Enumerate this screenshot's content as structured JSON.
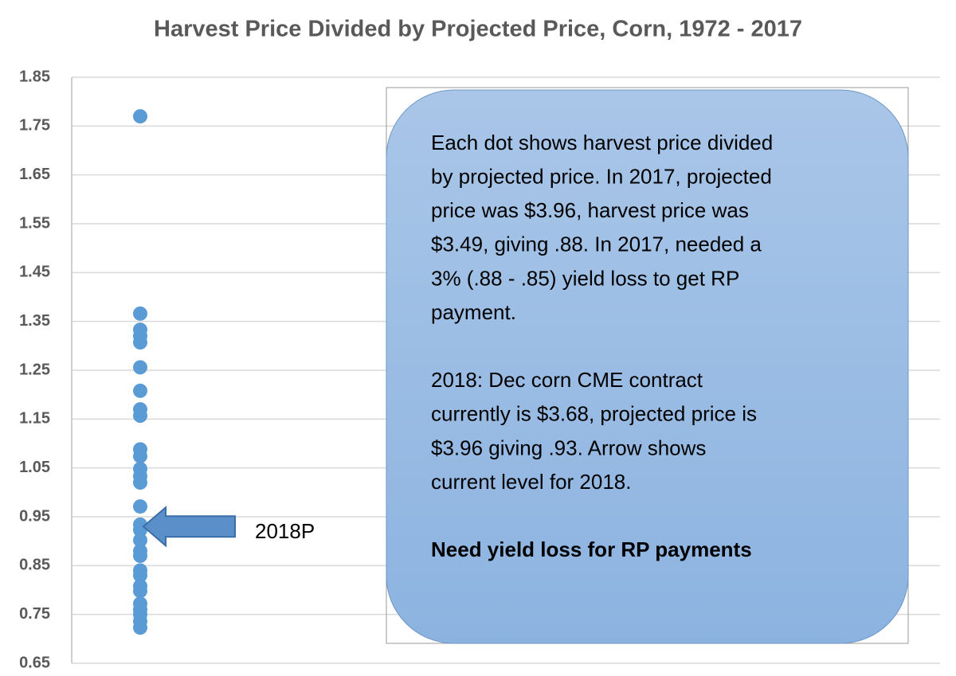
{
  "chart_data": {
    "type": "scatter",
    "title": "Harvest Price Divided by Projected Price, Corn, 1972 - 2017",
    "values": [
      1.77,
      1.366,
      1.333,
      1.32,
      1.307,
      1.256,
      1.208,
      1.17,
      1.157,
      1.088,
      1.074,
      1.048,
      1.033,
      1.02,
      0.971,
      0.934,
      0.923,
      0.902,
      0.88,
      0.87,
      0.84,
      0.83,
      0.808,
      0.798,
      0.772,
      0.76,
      0.75,
      0.736,
      0.723
    ],
    "color": "#5b9bd5",
    "ylim": [
      0.65,
      1.85
    ],
    "yticks": [
      0.65,
      0.75,
      0.85,
      0.95,
      1.05,
      1.15,
      1.25,
      1.35,
      1.45,
      1.55,
      1.65,
      1.75,
      1.85
    ],
    "grid": true,
    "arrow": {
      "text": "2018P",
      "value": 0.93
    },
    "text_box": {
      "paragraphs": [
        [
          "Each dot shows harvest price divided",
          "by projected price. In 2017, projected",
          "price was $3.96, harvest price was",
          "$3.49, giving .88.  In 2017, needed a",
          "3% (.88 - .85) yield loss to get RP",
          "payment."
        ],
        [
          "2018:  Dec corn CME contract",
          "currently is $3.68, projected price is",
          "$3.96 giving .93.  Arrow shows",
          "current level for 2018."
        ],
        [
          "Need yield loss for RP payments"
        ]
      ]
    }
  }
}
